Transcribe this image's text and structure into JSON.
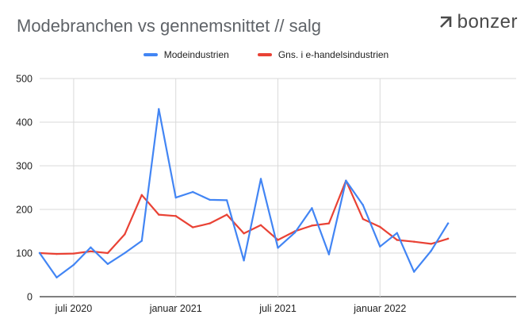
{
  "title": "Modebranchen vs gennemsnittet // salg",
  "logo": {
    "text": "bonzer",
    "icon": "arrow-corner-icon"
  },
  "colors": {
    "series_0": "#4285f4",
    "series_1": "#e94235",
    "grid": "#dadada",
    "axis": "#333333"
  },
  "chart_data": {
    "type": "line",
    "title": "Modebranchen vs gennemsnittet // salg",
    "xlabel": "",
    "ylabel": "",
    "ylim": [
      0,
      500
    ],
    "yticks": [
      0,
      100,
      200,
      300,
      400,
      500
    ],
    "grid": true,
    "legend": "top",
    "xlim": [
      "2020-05",
      "2022-09"
    ],
    "xticks": [
      {
        "x": "2020-07",
        "label": "juli 2020"
      },
      {
        "x": "2021-01",
        "label": "januar 2021"
      },
      {
        "x": "2021-07",
        "label": "juli 2021"
      },
      {
        "x": "2022-01",
        "label": "januar 2022"
      }
    ],
    "x": [
      "2020-05",
      "2020-06",
      "2020-07",
      "2020-08",
      "2020-09",
      "2020-10",
      "2020-11",
      "2020-12",
      "2021-01",
      "2021-02",
      "2021-03",
      "2021-04",
      "2021-05",
      "2021-06",
      "2021-07",
      "2021-08",
      "2021-09",
      "2021-10",
      "2021-11",
      "2021-12",
      "2022-01",
      "2022-02",
      "2022-03",
      "2022-04",
      "2022-05"
    ],
    "series": [
      {
        "name": "Modeindustrien",
        "values": [
          100,
          44,
          73,
          113,
          75,
          100,
          128,
          430,
          227,
          240,
          222,
          221,
          83,
          270,
          112,
          147,
          203,
          97,
          266,
          210,
          115,
          146,
          57,
          105,
          168
        ]
      },
      {
        "name": "Gns. i e-handelsindustrien",
        "values": [
          100,
          98,
          99,
          104,
          100,
          143,
          233,
          188,
          185,
          159,
          168,
          188,
          145,
          164,
          130,
          150,
          163,
          168,
          266,
          178,
          160,
          130,
          126,
          121,
          133
        ]
      }
    ]
  }
}
